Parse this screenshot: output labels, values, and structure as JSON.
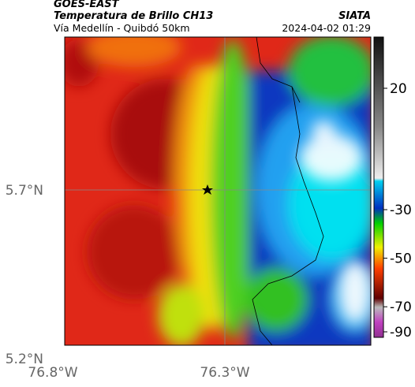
{
  "header": {
    "title": "GOES-EAST",
    "subtitle": "Temperatura de Brillo CH13",
    "location": "Vía Medellín - Quibdó 50km",
    "source": "SIATA",
    "datetime": "2024-04-02 01:29"
  },
  "axes": {
    "x_labels": [
      "76.8°W",
      "76.3°W"
    ],
    "y_labels": [
      "5.7°N",
      "5.2°N"
    ]
  },
  "colorbar": {
    "ticks": [
      20,
      -30,
      -50,
      -70,
      -90
    ]
  }
}
